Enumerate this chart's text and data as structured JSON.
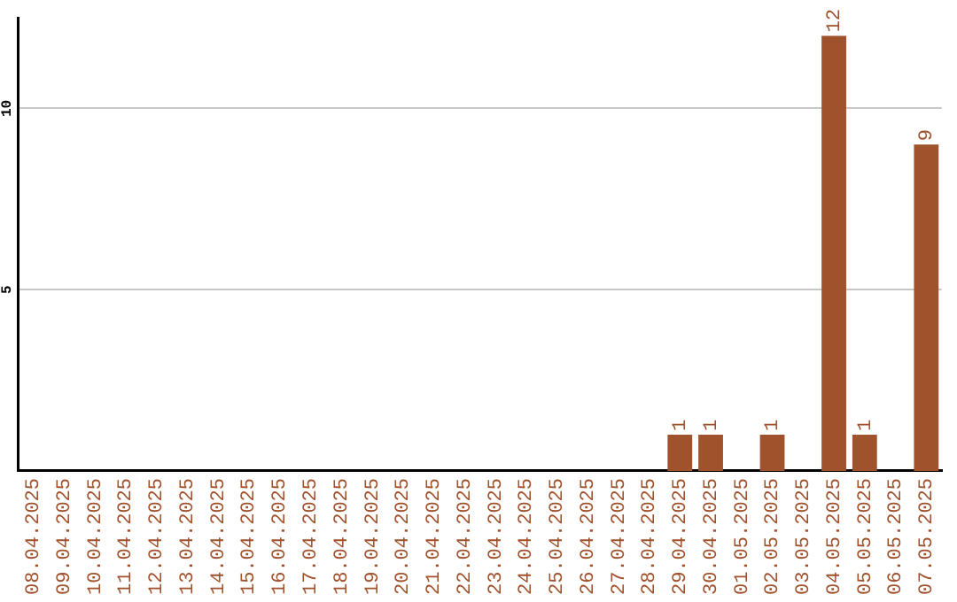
{
  "chart_data": {
    "type": "bar",
    "categories": [
      "08.04.2025",
      "09.04.2025",
      "10.04.2025",
      "11.04.2025",
      "12.04.2025",
      "13.04.2025",
      "14.04.2025",
      "15.04.2025",
      "16.04.2025",
      "17.04.2025",
      "18.04.2025",
      "19.04.2025",
      "20.04.2025",
      "21.04.2025",
      "22.04.2025",
      "23.04.2025",
      "24.04.2025",
      "25.04.2025",
      "26.04.2025",
      "27.04.2025",
      "28.04.2025",
      "29.04.2025",
      "30.04.2025",
      "01.05.2025",
      "02.05.2025",
      "03.05.2025",
      "04.05.2025",
      "05.05.2025",
      "06.05.2025",
      "07.05.2025"
    ],
    "values": [
      0,
      0,
      0,
      0,
      0,
      0,
      0,
      0,
      0,
      0,
      0,
      0,
      0,
      0,
      0,
      0,
      0,
      0,
      0,
      0,
      0,
      1,
      1,
      0,
      1,
      0,
      12,
      1,
      0,
      9
    ],
    "value_labels": [
      null,
      null,
      null,
      null,
      null,
      null,
      null,
      null,
      null,
      null,
      null,
      null,
      null,
      null,
      null,
      null,
      null,
      null,
      null,
      null,
      null,
      "1",
      "1",
      null,
      "1",
      null,
      "12",
      "1",
      null,
      "9"
    ],
    "color": "#a0522d",
    "ylim": [
      0,
      12.5
    ],
    "yticks": [
      5,
      10
    ],
    "grid": "y",
    "legend": false
  }
}
